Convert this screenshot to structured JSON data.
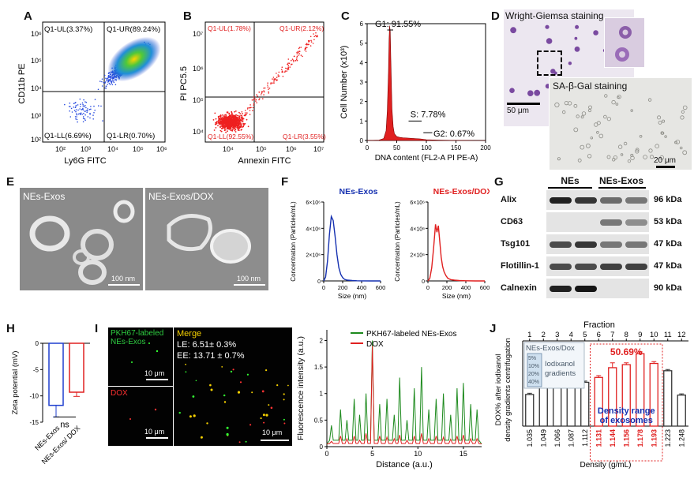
{
  "panel_labels": [
    "A",
    "B",
    "C",
    "D",
    "E",
    "F",
    "G",
    "H",
    "I",
    "J"
  ],
  "colors": {
    "blue": "#1f3fcf",
    "red": "#e02020",
    "green": "#1d8a1d",
    "navy": "#1530b0"
  },
  "panel_a": {
    "y_axis": "CD11b PE",
    "x_axis": "Ly6G FITC",
    "ul": "Q1-UL(3.37%)",
    "ur": "Q1-UR(89.24%)",
    "ll": "Q1-LL(6.69%)",
    "lr": "Q1-LR(0.70%)",
    "x_ticks": [
      "10²",
      "10³",
      "10⁴",
      "10⁵",
      "10⁶"
    ],
    "y_ticks": [
      "10⁶",
      "10⁵",
      "10⁴",
      "10³",
      "10²"
    ]
  },
  "panel_b": {
    "y_axis": "PI PC5.5",
    "x_axis": "Annexin FITC",
    "ul": "Q1-UL(1.78%)",
    "ur": "Q1-UR(2.12%)",
    "ll": "Q1-LL(92.55%)",
    "lr": "Q1-LR(3.55%)",
    "x_ticks": [
      "10⁴",
      "10⁵",
      "10⁶",
      "10⁷"
    ],
    "y_ticks": [
      "10⁷",
      "10⁶",
      "10⁵",
      "10⁴"
    ]
  },
  "panel_d": {
    "wright_title": "Wright-Giemsa staining",
    "sa_title": "SA-β-Gal staining",
    "scale_wright": "50 μm",
    "scale_sa": "20 μm"
  },
  "panel_e": {
    "left_label": "NEs-Exos",
    "right_label": "NEs-Exos/DOX",
    "scale_left": "100 nm",
    "scale_right": "100 nm"
  },
  "panel_g": {
    "header_left": "NEs",
    "header_right": "NEs-Exos",
    "rows": [
      {
        "name": "Alix",
        "kda": "96 kDa"
      },
      {
        "name": "CD63",
        "kda": "53 kDa"
      },
      {
        "name": "Tsg101",
        "kda": "47 kDa"
      },
      {
        "name": "Flotillin-1",
        "kda": "47 kDa"
      },
      {
        "name": "Calnexin",
        "kda": "90 kDa"
      }
    ]
  },
  "panel_i": {
    "green_label_1": "PKH67-labeled",
    "green_label_2": "NEs-Exos",
    "merge": "Merge",
    "le": "LE: 6.51± 0.3%",
    "ee": "EE: 13.71 ± 0.7%",
    "dox": "DOX",
    "scale_1": "10 μm",
    "scale_2": "10 μm",
    "scale_3": "10 μm"
  },
  "chart_data": [
    {
      "id": "C",
      "type": "area",
      "title": "",
      "xlabel": "DNA content (FL2-A PI PE-A)",
      "ylabel": "Cell Number (x10³)",
      "xlim": [
        0,
        200
      ],
      "ylim": [
        0,
        6
      ],
      "x_ticks": [
        0,
        50,
        100,
        150,
        200
      ],
      "y_ticks": [
        0,
        1,
        2,
        3,
        4,
        5,
        6
      ],
      "x": [
        0,
        20,
        28,
        32,
        34,
        36,
        37,
        38,
        39,
        40,
        41,
        42,
        44,
        46,
        50,
        55,
        60,
        70,
        75,
        80,
        90,
        100,
        120,
        140,
        160,
        180,
        200
      ],
      "values": [
        0,
        0.02,
        0.1,
        0.5,
        1.5,
        3.5,
        5.2,
        5.9,
        5.6,
        4.2,
        2.8,
        1.6,
        0.7,
        0.35,
        0.2,
        0.16,
        0.14,
        0.12,
        0.11,
        0.1,
        0.08,
        0.04,
        0.02,
        0.01,
        0.01,
        0,
        0
      ],
      "annotations": [
        "G1: 91.55%",
        "S: 7.78%",
        "G2: 0.67%"
      ]
    },
    {
      "id": "F_left",
      "type": "line",
      "title": "NEs-Exos",
      "xlabel": "Size (nm)",
      "ylabel": "Concentration (Particles/mL)",
      "xlim": [
        0,
        600
      ],
      "ylim": [
        0,
        6000000
      ],
      "x_ticks": [
        0,
        200,
        400,
        600
      ],
      "y_tick_labels": [
        "0",
        "2×10⁶",
        "4×10⁶",
        "6×10⁶"
      ],
      "x": [
        0,
        20,
        40,
        60,
        80,
        100,
        120,
        140,
        160,
        180,
        200,
        220,
        250,
        300,
        350,
        400,
        500,
        600
      ],
      "values": [
        0,
        300000,
        1500000,
        3500000,
        4900000,
        4600000,
        3400000,
        2000000,
        1000000,
        500000,
        250000,
        120000,
        60000,
        30000,
        15000,
        8000,
        0,
        0
      ]
    },
    {
      "id": "F_right",
      "type": "line",
      "title": "NEs-Exos/DOX",
      "xlabel": "Size (nm)",
      "ylabel": "Concentration (Particles/mL)",
      "xlim": [
        0,
        600
      ],
      "ylim": [
        0,
        6000000
      ],
      "x_ticks": [
        0,
        200,
        400,
        600
      ],
      "y_tick_labels": [
        "0",
        "2×10⁶",
        "4×10⁶",
        "6×10⁶"
      ],
      "x": [
        0,
        20,
        40,
        60,
        80,
        95,
        110,
        125,
        140,
        155,
        170,
        190,
        210,
        240,
        280,
        330,
        400,
        500,
        600
      ],
      "values": [
        0,
        200000,
        1000000,
        2500000,
        4300000,
        3700000,
        4200000,
        3000000,
        1800000,
        1100000,
        700000,
        400000,
        200000,
        100000,
        60000,
        30000,
        10000,
        0,
        0
      ]
    },
    {
      "id": "H",
      "type": "bar",
      "ylabel": "Zeta potential (mV)",
      "categories": [
        "NEs-Exos",
        "NEs-Exos/ DOX"
      ],
      "values": [
        -11.8,
        -9.3
      ],
      "errors": [
        2.2,
        0.8
      ],
      "ylim": [
        -15,
        0
      ],
      "y_ticks": [
        0,
        -5,
        -10,
        -15
      ],
      "significance": "ns"
    },
    {
      "id": "I_plot",
      "type": "line",
      "xlabel": "Distance (a.u.)",
      "ylabel": "Fluorescence intensity (a.u.)",
      "xlim": [
        0,
        17
      ],
      "ylim": [
        0,
        2.2
      ],
      "x_ticks": [
        0,
        5,
        10,
        15
      ],
      "y_ticks": [
        0.0,
        0.5,
        1.0,
        1.5,
        2.0
      ],
      "legend": [
        "PKH67-labeled NEs-Exos",
        "DOX"
      ],
      "peaks_x": [
        0.5,
        1.5,
        2.2,
        3.0,
        3.6,
        4.3,
        5.0,
        5.8,
        6.6,
        7.4,
        8.0,
        8.8,
        9.6,
        10.4,
        11.2,
        12.0,
        12.8,
        13.6,
        14.3,
        15.0,
        15.8,
        16.5
      ],
      "series": [
        {
          "name": "PKH67-labeled NEs-Exos",
          "values": [
            0.4,
            0.7,
            0.5,
            0.9,
            0.6,
            1.0,
            2.0,
            0.8,
            0.9,
            0.6,
            1.3,
            0.5,
            1.1,
            1.5,
            0.7,
            0.9,
            1.0,
            0.6,
            1.1,
            1.2,
            0.8,
            0.7
          ]
        },
        {
          "name": "DOX",
          "values": [
            0.1,
            0.2,
            0.15,
            0.2,
            0.12,
            0.25,
            1.9,
            0.2,
            0.18,
            0.15,
            0.22,
            0.12,
            0.2,
            0.25,
            0.15,
            0.2,
            0.18,
            0.14,
            0.2,
            0.22,
            0.15,
            0.15
          ]
        }
      ]
    },
    {
      "id": "J",
      "type": "bar",
      "top_label": "Fraction",
      "fractions": [
        "1",
        "2",
        "3",
        "4",
        "5",
        "6",
        "7",
        "8",
        "9",
        "10",
        "11",
        "12"
      ],
      "categories": [
        "1.035",
        "1.049",
        "1.066",
        "1.087",
        "1.112",
        "1.131",
        "1.144",
        "1.156",
        "1.178",
        "1.193",
        "1.223",
        "1.248"
      ],
      "values": [
        5.2,
        6.6,
        7.4,
        7.1,
        7.2,
        8.0,
        9.6,
        10.1,
        11.9,
        10.3,
        9.1,
        5.1
      ],
      "errors": [
        0.2,
        0.3,
        0.3,
        0.2,
        0.2,
        0.3,
        0.8,
        0.3,
        0.3,
        0.3,
        0.2,
        0.2
      ],
      "highlighted": [
        5,
        6,
        7,
        8,
        9
      ],
      "ylim": [
        0,
        14
      ],
      "xlabel": "Density (g/mL)",
      "ylabel_1": "DOX% after iodixanol",
      "ylabel_2": "density gradients centrifugation",
      "peak_label": "50.69%",
      "range_label_1": "Density range",
      "range_label_2": "of exosomes",
      "inset_title": "NEs-Exos/Dox",
      "inset_gradients": [
        "5%",
        "10%",
        "20%",
        "40%"
      ],
      "inset_label_1": "Iodixanol",
      "inset_label_2": "gradients"
    }
  ]
}
